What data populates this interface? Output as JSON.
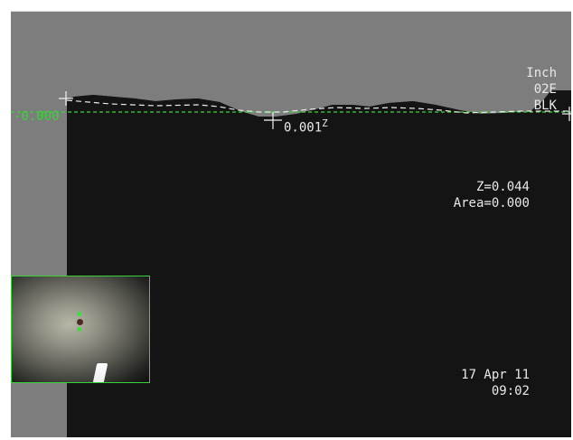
{
  "display": {
    "units": "Inch",
    "probe": "02E",
    "color_mode": "BLK",
    "reference_value": "-0.000",
    "cursor_value": "0.001",
    "cursor_marker": "Z",
    "z_readout": "Z=0.044",
    "area_readout": "Area=0.000",
    "date": "17 Apr 11",
    "time": "09:02"
  },
  "colors": {
    "background": "#141414",
    "sky": "#7d7d7d",
    "reference": "#37d637",
    "text": "#e9e9e9",
    "thumbnail_border": "#39d339"
  },
  "icons": {
    "cursor_left": "crosshair-icon",
    "cursor_center": "crosshair-icon",
    "cursor_right": "crosshair-icon"
  }
}
